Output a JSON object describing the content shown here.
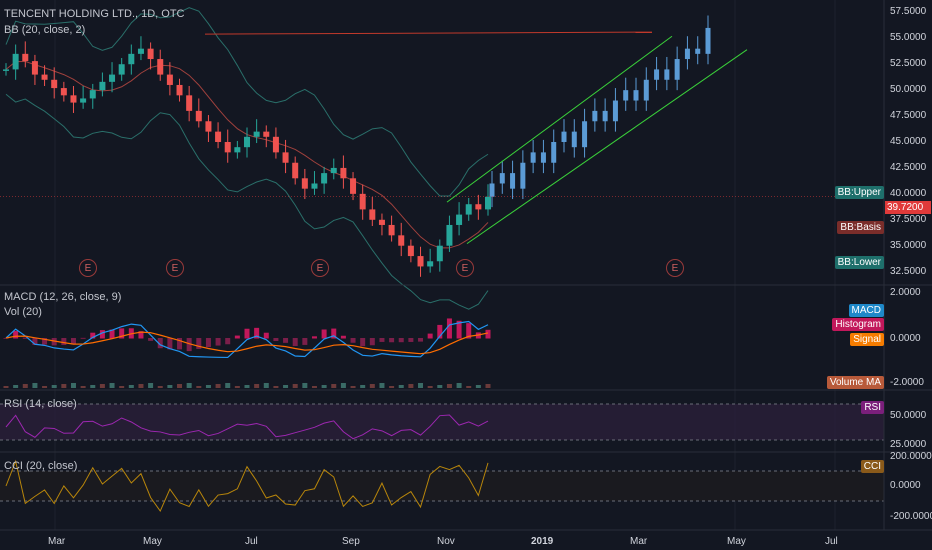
{
  "header": {
    "symbol_title": "TENCENT HOLDING LTD., 1D, OTC",
    "bb_legend": "BB (20, close, 2)",
    "macd_legend": "MACD (12, 26, close, 9)",
    "vol_legend": "Vol (20)",
    "rsi_legend": "RSI (14, close)",
    "cci_legend": "CCI (20, close)"
  },
  "price_axis": {
    "ticks": [
      "57.5000",
      "55.0000",
      "52.5000",
      "50.0000",
      "47.5000",
      "45.0000",
      "42.5000",
      "40.0000",
      "37.5000",
      "35.0000",
      "32.5000"
    ],
    "last_price": "39.7200"
  },
  "indicator_tags": {
    "bb_upper": "BB:Upper",
    "bb_basis": "BB:Basis",
    "bb_lower": "BB:Lower",
    "macd": "MACD",
    "histogram": "Histogram",
    "signal": "Signal",
    "volume_ma": "Volume MA",
    "rsi": "RSI",
    "cci": "CCI"
  },
  "macd_axis": {
    "ticks": [
      "2.0000",
      "0.0000",
      "-2.0000"
    ]
  },
  "rsi_axis": {
    "ticks": [
      "50.0000",
      "25.0000"
    ]
  },
  "cci_axis": {
    "ticks": [
      "200.0000",
      "0.0000",
      "-200.0000"
    ]
  },
  "time_axis": {
    "ticks": [
      "Mar",
      "May",
      "Jul",
      "Sep",
      "Nov",
      "2019",
      "Mar",
      "May",
      "Jul"
    ]
  },
  "earnings_markers": [
    "E",
    "E",
    "E",
    "E",
    "E"
  ],
  "colors": {
    "background": "#131722",
    "up_candle": "#26a69a",
    "down_candle": "#ef5350",
    "projection": "#5b9bd5",
    "channel": "#3ad13a",
    "resistance": "#c0392b",
    "bb_band": "#2a6f6a",
    "bb_basis": "#a0413d",
    "macd_line": "#2196f3",
    "signal_line": "#ff6d00",
    "rsi_line": "#9c27b0",
    "cci_line": "#b8860b"
  },
  "chart_data": {
    "type": "candlestick",
    "title": "TENCENT HOLDING LTD., 1D, OTC",
    "ylim": [
      31.5,
      58.5
    ],
    "x_range": [
      "Feb",
      "Aug"
    ],
    "closes": [
      52.0,
      53.5,
      52.8,
      51.5,
      51.0,
      50.2,
      49.5,
      48.8,
      49.2,
      50.0,
      50.8,
      51.5,
      52.5,
      53.5,
      54.0,
      53.0,
      51.5,
      50.5,
      49.5,
      48.0,
      47.0,
      46.0,
      45.0,
      44.0,
      44.5,
      45.5,
      46.0,
      45.5,
      44.0,
      43.0,
      41.5,
      40.5,
      41.0,
      42.0,
      42.5,
      41.5,
      40.0,
      38.5,
      37.5,
      37.0,
      36.0,
      35.0,
      34.0,
      33.0,
      33.5,
      35.0,
      37.0,
      38.0,
      39.0,
      38.5,
      39.72
    ],
    "projection_closes": [
      41.0,
      42.0,
      40.5,
      43.0,
      44.0,
      43.0,
      45.0,
      46.0,
      44.5,
      47.0,
      48.0,
      47.0,
      49.0,
      50.0,
      49.0,
      51.0,
      52.0,
      51.0,
      53.0,
      54.0,
      53.5,
      56.0
    ],
    "resistance_level": 55.4,
    "channel": {
      "start": [
        "Nov",
        39.2
      ],
      "end": [
        "Apr",
        55.2
      ],
      "width": 3.5
    }
  }
}
